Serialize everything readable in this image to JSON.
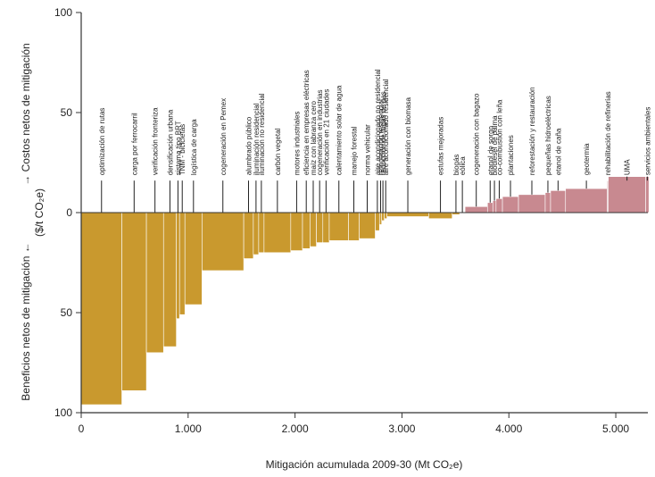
{
  "chart_data": {
    "type": "bar",
    "title": "",
    "xlabel": "Mitigación acumulada 2009-30 (Mt CO₂e)",
    "ylabel_top": "→ Costos netos de mitigación",
    "ylabel_unit": "($/t CO₂e)",
    "ylabel_bottom": "Beneficios netos de mitigación ←",
    "xlim": [
      0,
      5300
    ],
    "ylim": [
      -100,
      100
    ],
    "x_ticks": [
      0,
      1000,
      2000,
      3000,
      4000,
      5000
    ],
    "x_tick_labels": [
      "0",
      "1.000",
      "2.000",
      "3.000",
      "4.000",
      "5.000"
    ],
    "y_ticks": [
      100,
      50,
      0,
      -50,
      -100
    ],
    "y_tick_labels": [
      "100",
      "50",
      "0",
      "50",
      "100"
    ],
    "colors": {
      "benefit": "#c9992e",
      "cost": "#c88990",
      "axis": "#333333",
      "leader": "#222222"
    },
    "measures": [
      {
        "label": "optimización de rutas",
        "x0": 0,
        "x1": 380,
        "y": -96
      },
      {
        "label": "carga por ferrocarril",
        "x0": 380,
        "x1": 610,
        "y": -89
      },
      {
        "label": "verificación fronteriza",
        "x0": 610,
        "x1": 770,
        "y": -70
      },
      {
        "label": "densificación urbana",
        "x0": 770,
        "x1": 890,
        "y": -67
      },
      {
        "label": "sistema tipo BRT",
        "x0": 890,
        "x1": 920,
        "y": -53
      },
      {
        "label": "TNM - bicicletas",
        "x0": 920,
        "x1": 970,
        "y": -51
      },
      {
        "label": "logística de carga",
        "x0": 970,
        "x1": 1130,
        "y": -46
      },
      {
        "label": "cogeneración en Pemex",
        "x0": 1130,
        "x1": 1520,
        "y": -29
      },
      {
        "label": "alumbrado público",
        "x0": 1520,
        "x1": 1610,
        "y": -23
      },
      {
        "label": "iluminación residencial",
        "x0": 1610,
        "x1": 1660,
        "y": -21
      },
      {
        "label": "iluminación no residencial",
        "x0": 1660,
        "x1": 1710,
        "y": -20
      },
      {
        "label": "carbón vegetal",
        "x0": 1710,
        "x1": 1960,
        "y": -20
      },
      {
        "label": "motores industriales",
        "x0": 1960,
        "x1": 2070,
        "y": -19
      },
      {
        "label": "eficiencia en empresas eléctricas",
        "x0": 2070,
        "x1": 2140,
        "y": -18
      },
      {
        "label": "maíz con labranza cero",
        "x0": 2140,
        "x1": 2200,
        "y": -17
      },
      {
        "label": "cogeneración en industrias",
        "x0": 2200,
        "x1": 2260,
        "y": -15
      },
      {
        "label": "verificación en 21 ciudades",
        "x0": 2260,
        "x1": 2320,
        "y": -15
      },
      {
        "label": "calentamiento solar de agua",
        "x0": 2320,
        "x1": 2500,
        "y": -14
      },
      {
        "label": "manejo forestal",
        "x0": 2500,
        "x1": 2600,
        "y": -14
      },
      {
        "label": "norma vehicular",
        "x0": 2600,
        "x1": 2750,
        "y": -13
      },
      {
        "label": "aire acondicionado no residencial",
        "x0": 2750,
        "x1": 2790,
        "y": -9
      },
      {
        "label": "refrigeración residencial",
        "x0": 2790,
        "x1": 2810,
        "y": -6
      },
      {
        "label": "reducción de fugas de gas",
        "x0": 2810,
        "x1": 2835,
        "y": -4
      },
      {
        "label": "aire acondicionado residencial",
        "x0": 2835,
        "x1": 2860,
        "y": -3
      },
      {
        "label": "generación con biomasa",
        "x0": 2860,
        "x1": 3250,
        "y": -2
      },
      {
        "label": "estufas mejoradas",
        "x0": 3250,
        "x1": 3470,
        "y": -3
      },
      {
        "label": "biogás",
        "x0": 3470,
        "x1": 3540,
        "y": -1
      },
      {
        "label": "eólica",
        "x0": 3540,
        "x1": 3590,
        "y": 0
      },
      {
        "label": "cogeneración con bagazo",
        "x0": 3590,
        "x1": 3800,
        "y": 3
      },
      {
        "label": "etanol de sorgo",
        "x0": 3800,
        "x1": 3850,
        "y": 5
      },
      {
        "label": "biodiesel de palma",
        "x0": 3850,
        "x1": 3880,
        "y": 6
      },
      {
        "label": "co-combustión con leña",
        "x0": 3880,
        "x1": 3940,
        "y": 7
      },
      {
        "label": "plantaciones",
        "x0": 3940,
        "x1": 4090,
        "y": 8
      },
      {
        "label": "reforestación y restauración",
        "x0": 4090,
        "x1": 4340,
        "y": 9
      },
      {
        "label": "pequeñas hidroeléctricas",
        "x0": 4340,
        "x1": 4390,
        "y": 10
      },
      {
        "label": "etanol de caña",
        "x0": 4390,
        "x1": 4530,
        "y": 11
      },
      {
        "label": "geotermia",
        "x0": 4530,
        "x1": 4920,
        "y": 12
      },
      {
        "label": "rehabilitación de refinerías",
        "x0": 4920,
        "x1": 4930,
        "y": 16
      },
      {
        "label": "UMA",
        "x0": 4930,
        "x1": 5280,
        "y": 18
      },
      {
        "label": "servicios ambientales",
        "x0": 5280,
        "x1": 5310,
        "y": 18
      }
    ],
    "label_anchors": [
      {
        "index": 0,
        "x": 190,
        "y_label": 44,
        "y_line": 16
      },
      {
        "index": 1,
        "x": 495,
        "y_label": 44,
        "y_line": 16
      },
      {
        "index": 2,
        "x": 690,
        "y_label": 44,
        "y_line": 16
      },
      {
        "index": 3,
        "x": 830,
        "y_label": 44,
        "y_line": 16
      },
      {
        "index": 4,
        "x": 905,
        "y_label": 44,
        "y_line": 16
      },
      {
        "index": 5,
        "x": 945,
        "y_label": 44,
        "y_line": 16
      },
      {
        "index": 6,
        "x": 1050,
        "y_label": 44,
        "y_line": 16
      },
      {
        "index": 7,
        "x": 1325,
        "y_label": 44,
        "y_line": 16
      },
      {
        "index": 8,
        "x": 1565,
        "y_label": 37,
        "y_line": 16
      },
      {
        "index": 9,
        "x": 1635,
        "y_label": 37,
        "y_line": 16
      },
      {
        "index": 10,
        "x": 1685,
        "y_label": 37,
        "y_line": 16
      },
      {
        "index": 11,
        "x": 1835,
        "y_label": 37,
        "y_line": 16
      },
      {
        "index": 12,
        "x": 2015,
        "y_label": 40,
        "y_line": 16
      },
      {
        "index": 13,
        "x": 2105,
        "y_label": 40,
        "y_line": 16
      },
      {
        "index": 14,
        "x": 2170,
        "y_label": 40,
        "y_line": 16
      },
      {
        "index": 15,
        "x": 2230,
        "y_label": 40,
        "y_line": 16
      },
      {
        "index": 16,
        "x": 2290,
        "y_label": 40,
        "y_line": 16
      },
      {
        "index": 17,
        "x": 2410,
        "y_label": 40,
        "y_line": 16
      },
      {
        "index": 18,
        "x": 2550,
        "y_label": 30,
        "y_line": 16
      },
      {
        "index": 19,
        "x": 2675,
        "y_label": 30,
        "y_line": 16
      },
      {
        "index": 20,
        "x": 2770,
        "y_label": 30,
        "y_line": 16
      },
      {
        "index": 21,
        "x": 2800,
        "y_label": 30,
        "y_line": 16
      },
      {
        "index": 22,
        "x": 2822,
        "y_label": 30,
        "y_line": 16
      },
      {
        "index": 23,
        "x": 2848,
        "y_label": 30,
        "y_line": 16
      },
      {
        "index": 24,
        "x": 3055,
        "y_label": 30,
        "y_line": 16
      },
      {
        "index": 25,
        "x": 3360,
        "y_label": 30,
        "y_line": 16
      },
      {
        "index": 26,
        "x": 3505,
        "y_label": 30,
        "y_line": 16
      },
      {
        "index": 27,
        "x": 3565,
        "y_label": 30,
        "y_line": 16
      },
      {
        "index": 28,
        "x": 3695,
        "y_label": 30,
        "y_line": 16
      },
      {
        "index": 29,
        "x": 3825,
        "y_label": 30,
        "y_line": 16
      },
      {
        "index": 30,
        "x": 3865,
        "y_label": 30,
        "y_line": 16
      },
      {
        "index": 31,
        "x": 3910,
        "y_label": 30,
        "y_line": 16
      },
      {
        "index": 32,
        "x": 4015,
        "y_label": 30,
        "y_line": 16
      },
      {
        "index": 33,
        "x": 4215,
        "y_label": 30,
        "y_line": 16
      },
      {
        "index": 34,
        "x": 4365,
        "y_label": 30,
        "y_line": 16
      },
      {
        "index": 35,
        "x": 4460,
        "y_label": 30,
        "y_line": 16
      },
      {
        "index": 36,
        "x": 4725,
        "y_label": 30,
        "y_line": 16
      },
      {
        "index": 37,
        "x": 4925,
        "y_label": 30,
        "y_line": 16
      },
      {
        "index": 38,
        "x": 5105,
        "y_label": 30,
        "y_line": 16
      },
      {
        "index": 39,
        "x": 5295,
        "y_label": 30,
        "y_line": 16
      }
    ]
  }
}
